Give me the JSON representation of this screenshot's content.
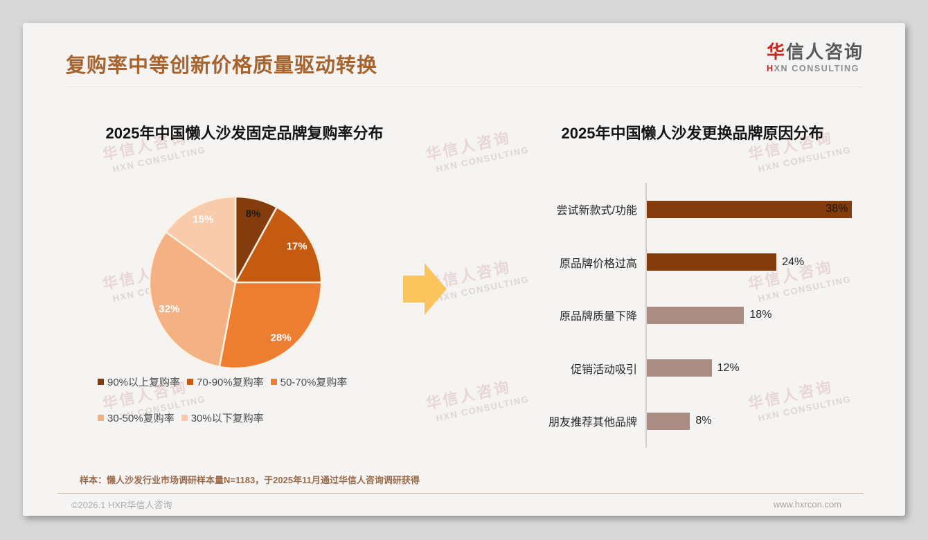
{
  "page": {
    "title": "复购率中等创新价格质量驱动转换",
    "footnote": "样本：懒人沙发行业市场调研样本量N=1183，于2025年11月通过华信人咨询调研获得",
    "copyright": "©2026.1 HXR华信人咨询",
    "website": "www.hxrcon.com"
  },
  "logo": {
    "cn_first": "华",
    "cn_rest": "信人咨询",
    "en_first": "H",
    "en_rest": "XN CONSULTING"
  },
  "watermark": {
    "cn": "华信人咨询",
    "en": "HXN CONSULTING"
  },
  "colors": {
    "title": "#A6632E",
    "logo_red": "#C5271E",
    "arrow": "#FBC45C",
    "card_bg": "#F5F4F2",
    "outer_bg": "#D8D8D8"
  },
  "chart_data": [
    {
      "type": "pie",
      "title": "2025年中国懒人沙发固定品牌复购率分布",
      "labels": [
        "90%以上复购率",
        "70-90%复购率",
        "50-70%复购率",
        "30-50%复购率",
        "30%以下复购率"
      ],
      "values": [
        8,
        17,
        28,
        32,
        15
      ],
      "unit": "%",
      "colors": [
        "#843C0C",
        "#C55A11",
        "#ED7D31",
        "#F4B183",
        "#F8CBAD"
      ],
      "label_colors": [
        "#1A1A1A",
        "#FFFFFF",
        "#FFFFFF",
        "#FFFFFF",
        "#FFFFFF"
      ],
      "start_angle_deg": 0,
      "direction": "clockwise",
      "legend_position": "bottom"
    },
    {
      "type": "bar",
      "orientation": "horizontal",
      "title": "2025年中国懒人沙发更换品牌原因分布",
      "categories": [
        "尝试新款式/功能",
        "原品牌价格过高",
        "原品牌质量下降",
        "促销活动吸引",
        "朋友推荐其他品牌"
      ],
      "values": [
        38,
        24,
        18,
        12,
        8
      ],
      "unit": "%",
      "bar_colors": [
        "#843C0C",
        "#843C0C",
        "#A98C82",
        "#A98C82",
        "#A98C82"
      ],
      "xlim": [
        0,
        40
      ],
      "grid": false,
      "value_labels": "outside-end"
    }
  ]
}
